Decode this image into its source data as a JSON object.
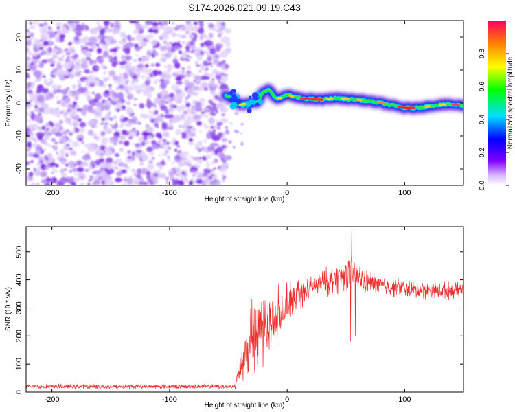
{
  "title": "S174.2026.021.09.19.C43",
  "chart_data": [
    {
      "type": "heatmap",
      "name": "spectrogram",
      "xlabel": "Height of straight line (km)",
      "ylabel": "Frequency (Hz)",
      "xlim": [
        -222,
        150
      ],
      "ylim": [
        -25,
        25
      ],
      "xticks": [
        -200,
        -100,
        0,
        100
      ],
      "yticks": [
        -20,
        -10,
        0,
        10,
        20
      ],
      "xtick_labels": [
        "-200",
        "-100",
        "0",
        "100"
      ],
      "ytick_labels": [
        "-20",
        "-10",
        "0",
        "10",
        "20"
      ],
      "noise_region_x": [
        -222,
        -52
      ],
      "ridge": {
        "x": [
          -52,
          -45,
          -40,
          -35,
          -30,
          -25,
          -20,
          -15,
          -10,
          -5,
          0,
          10,
          20,
          30,
          40,
          50,
          60,
          70,
          80,
          90,
          100,
          110,
          120,
          130,
          140,
          150
        ],
        "freq": [
          2.5,
          1.0,
          -0.5,
          -0.3,
          0.0,
          0.5,
          3.5,
          4.0,
          1.5,
          1.5,
          2.5,
          1.5,
          1.2,
          1.0,
          1.5,
          1.2,
          1.0,
          0.5,
          0.0,
          -0.8,
          -1.5,
          -1.5,
          -1.0,
          -0.5,
          -0.5,
          -0.8
        ]
      },
      "colorbar": {
        "label": "Normalized spectral amplitude",
        "range": [
          0,
          1
        ],
        "ticks": [
          0.0,
          0.2,
          0.4,
          0.6,
          0.8
        ],
        "tick_labels": [
          "0.0",
          "0.2",
          "0.4",
          "0.6",
          "0.8"
        ]
      }
    },
    {
      "type": "line",
      "name": "snr",
      "xlabel": "Height of straight line (km)",
      "ylabel": "SNR (10 * v/v)",
      "xlim": [
        -222,
        150
      ],
      "ylim": [
        0,
        590
      ],
      "xticks": [
        -200,
        -100,
        0,
        100
      ],
      "yticks": [
        0,
        100,
        200,
        300,
        400,
        500
      ],
      "xtick_labels": [
        "-200",
        "-100",
        "0",
        "100"
      ],
      "ytick_labels": [
        "0",
        "100",
        "200",
        "300",
        "400",
        "500"
      ],
      "color": "#ee3030",
      "envelope": {
        "x": [
          -222,
          -100,
          -45,
          -40,
          -35,
          -30,
          -20,
          -10,
          0,
          10,
          20,
          30,
          40,
          50,
          55,
          60,
          70,
          80,
          100,
          120,
          150
        ],
        "y": [
          20,
          20,
          20,
          80,
          150,
          200,
          230,
          250,
          300,
          340,
          370,
          390,
          400,
          420,
          430,
          410,
          390,
          380,
          370,
          360,
          365
        ]
      },
      "noise_amplitude": {
        "x": [
          -222,
          -45,
          -40,
          -30,
          -20,
          0,
          20,
          50,
          60,
          80,
          150
        ],
        "y": [
          8,
          8,
          60,
          90,
          110,
          60,
          40,
          60,
          50,
          35,
          30
        ]
      },
      "spikes": [
        {
          "x": 55,
          "y": 590
        },
        {
          "x": 54,
          "y": 180
        },
        {
          "x": 58,
          "y": 200
        }
      ]
    }
  ]
}
